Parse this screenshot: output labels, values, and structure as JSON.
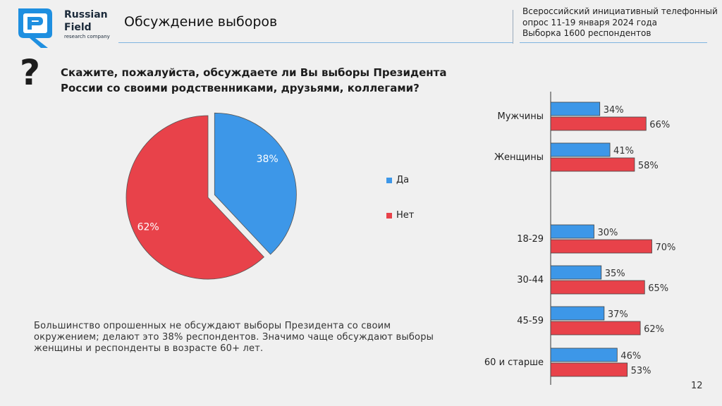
{
  "header": {
    "brand": [
      "Russian",
      "Field"
    ],
    "brand_sub": "research company",
    "title": "Обсуждение выборов",
    "survey_info": [
      "Всероссийский инициативный телефонный",
      "опрос 11-19 января 2024 года",
      "Выборка 1600 респондентов"
    ]
  },
  "question": {
    "mark": "?",
    "text": "Скажите, пожалуйста, обсуждаете ли Вы выборы Президента России со своими родственниками, друзьями, коллегами?"
  },
  "summary": "Большинство опрошенных не обсуждают выборы Президента со своим окружением; делают это 38% респондентов. Значимо чаще обсуждают выборы женщины и респонденты в возрасте 60+ лет.",
  "page_number": "12",
  "colors": {
    "yes": "#3d97e8",
    "no": "#e8424a",
    "accent": "#1e8fe0",
    "text": "#1d1d1d"
  },
  "icons": {
    "logo": "russian-field-logo",
    "question": "question-mark-icon"
  },
  "chart_data": [
    {
      "type": "pie",
      "title": "",
      "categories": [
        "Да",
        "Нет"
      ],
      "values": [
        38,
        62
      ],
      "value_labels": [
        "38%",
        "62%"
      ],
      "legend": "right"
    },
    {
      "type": "bar",
      "orientation": "horizontal",
      "title": "",
      "categories": [
        "Мужчины",
        "Женщины",
        "18-29",
        "30-44",
        "45-59",
        "60 и старше"
      ],
      "series": [
        {
          "name": "Да",
          "values": [
            34,
            41,
            30,
            35,
            37,
            46
          ],
          "labels": [
            "34%",
            "41%",
            "30%",
            "35%",
            "37%",
            "46%"
          ]
        },
        {
          "name": "Нет",
          "values": [
            66,
            58,
            70,
            65,
            62,
            53
          ],
          "labels": [
            "66%",
            "58%",
            "70%",
            "65%",
            "62%",
            "53%"
          ]
        }
      ],
      "xlim": [
        0,
        100
      ],
      "grid": false
    }
  ]
}
